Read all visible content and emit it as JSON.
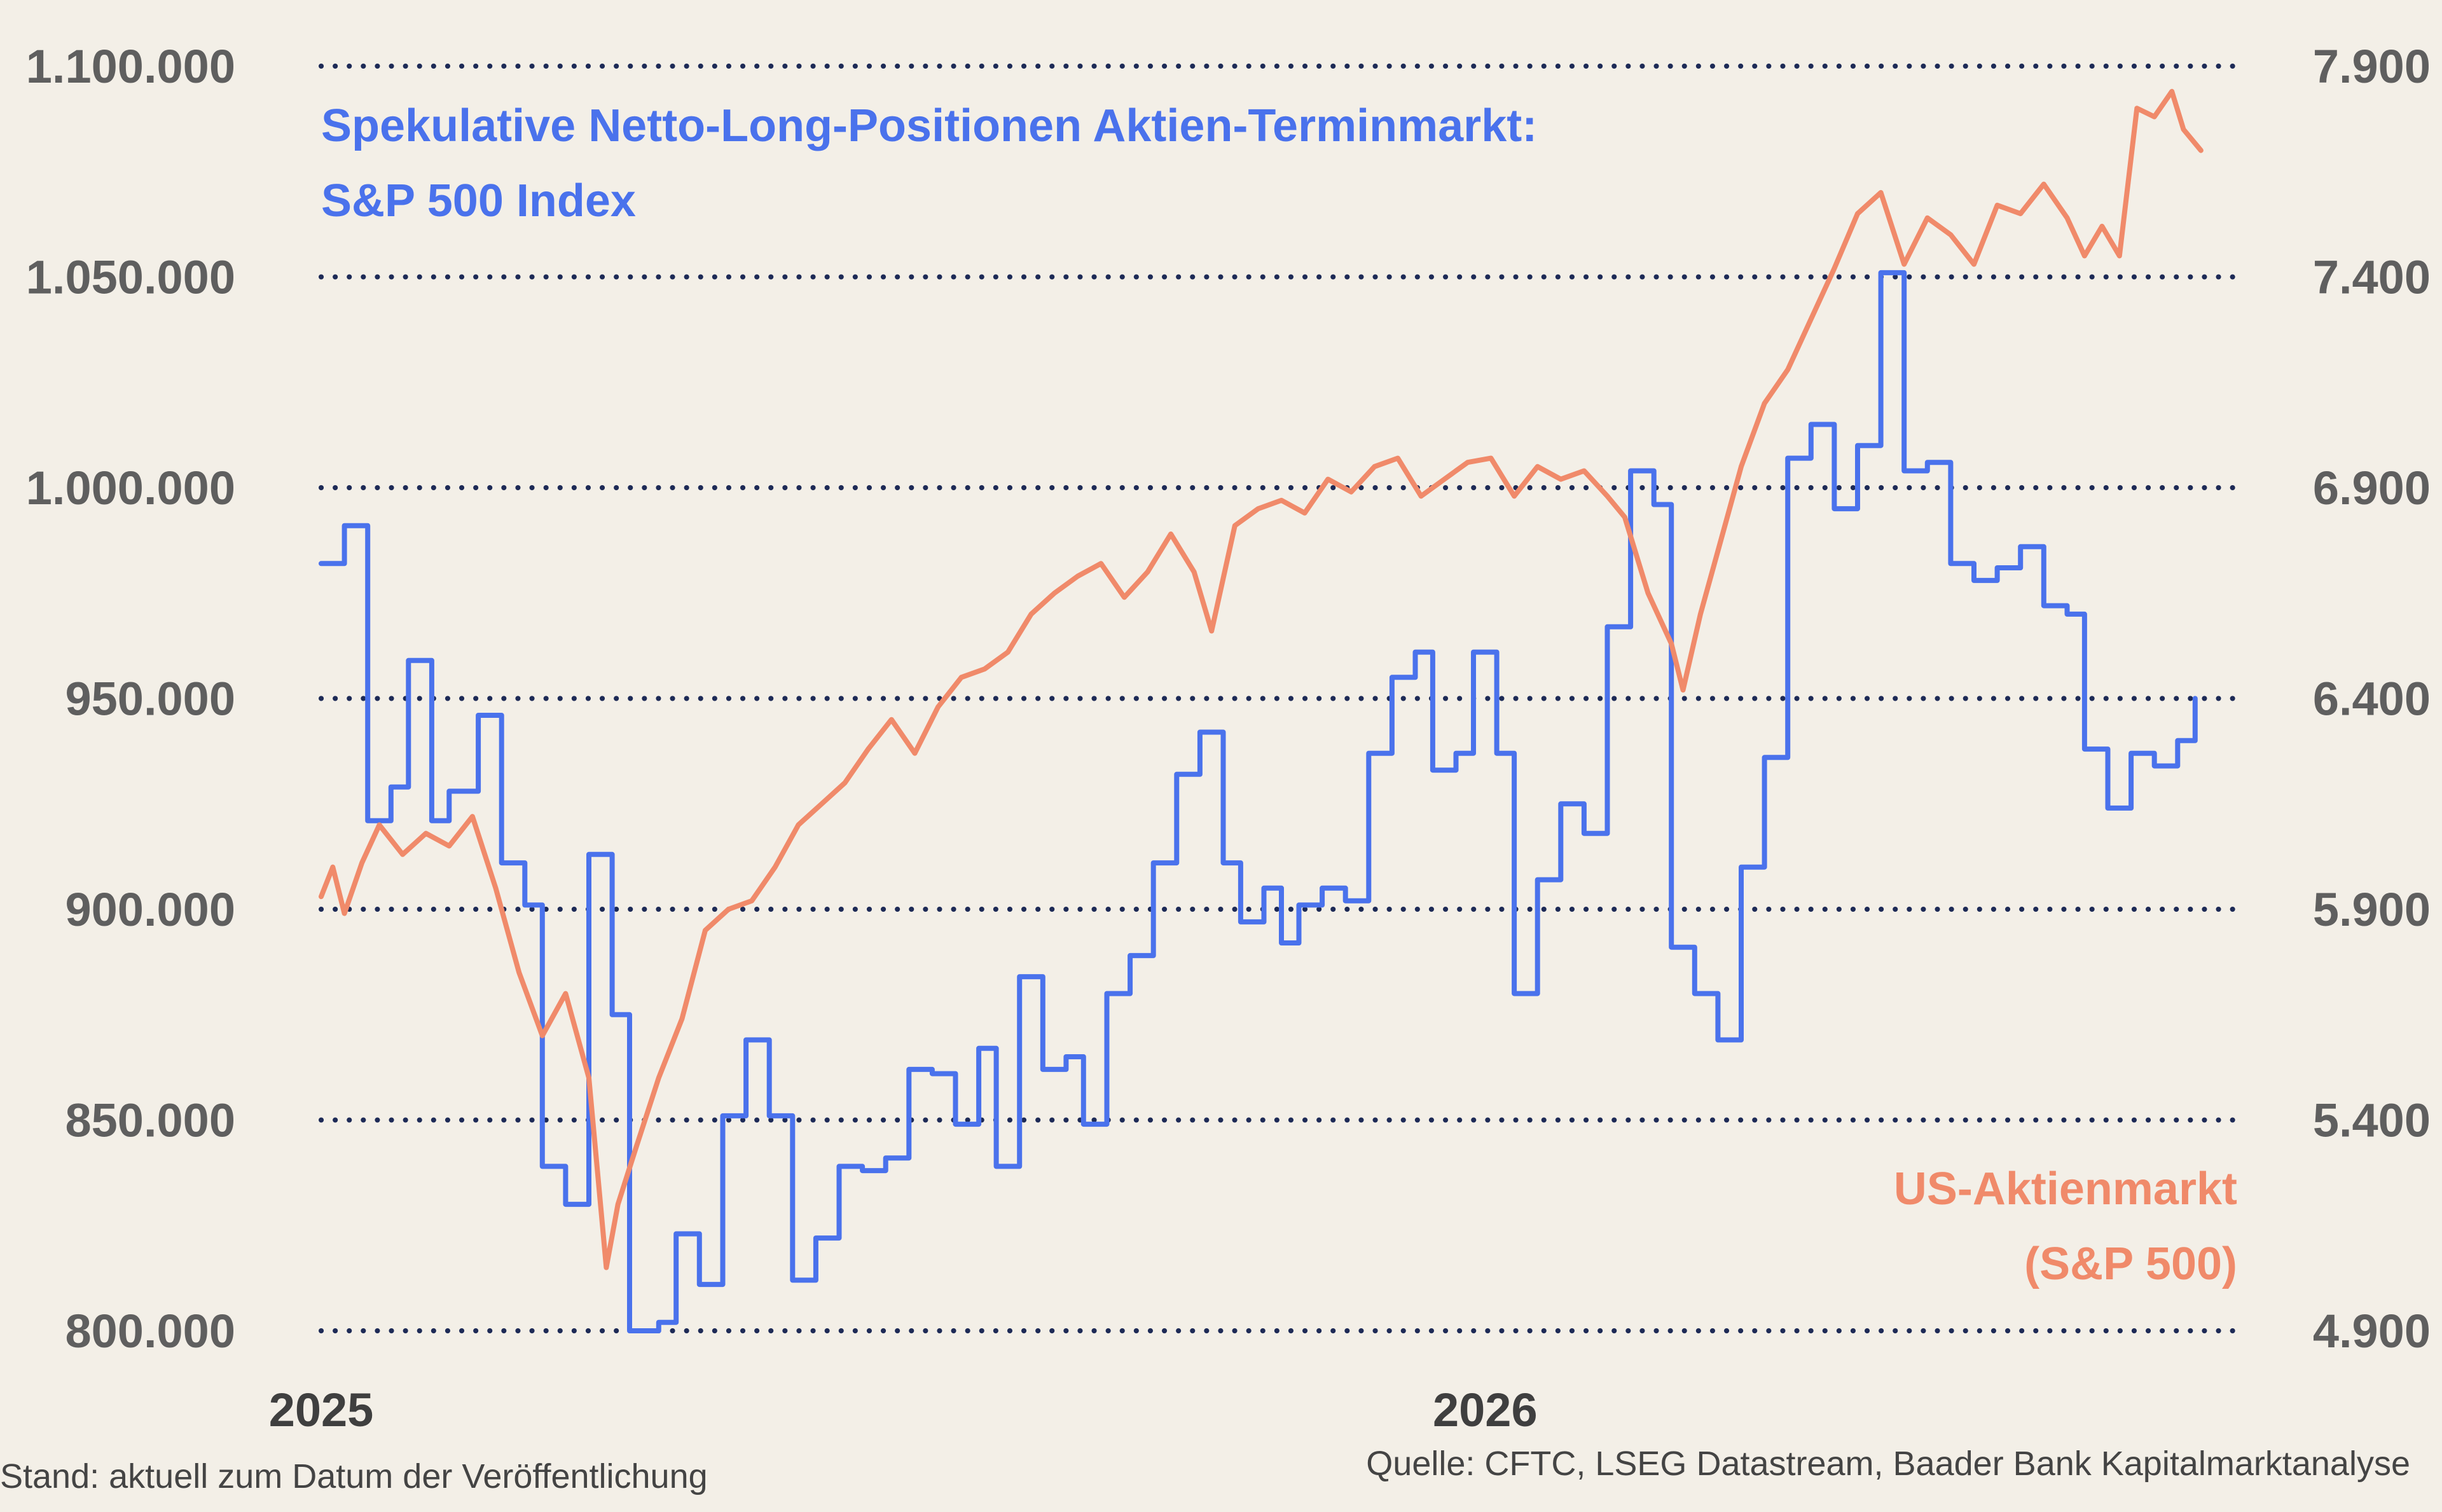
{
  "chart_data": {
    "type": "line",
    "title": "Spekulative Netto-Long-Positionen Aktien-Terminmarkt:",
    "title_line2": "S&P 500 Index",
    "left_axis": {
      "ylim": [
        800000,
        1100000
      ],
      "ticks": [
        "800.000",
        "850.000",
        "900.000",
        "950.000",
        "1.000.000",
        "1.050.000",
        "1.100.000"
      ],
      "tick_values": [
        800000,
        850000,
        900000,
        950000,
        1000000,
        1050000,
        1100000
      ]
    },
    "right_axis": {
      "ylim": [
        4900,
        7900
      ],
      "ticks": [
        "4.900",
        "5.400",
        "5.900",
        "6.400",
        "6.900",
        "7.400",
        "7.900"
      ],
      "tick_values": [
        4900,
        5400,
        5900,
        6400,
        6900,
        7400,
        7900
      ]
    },
    "x_axis": {
      "xlim": [
        2025.0,
        2026.65
      ],
      "ticks": [
        "2025",
        "2026"
      ],
      "tick_values": [
        2025.0,
        2026.0
      ]
    },
    "grid": true,
    "series": [
      {
        "name": "Spekulative Netto-Long-Positionen Aktien-Terminmarkt: S&P 500 Index",
        "axis": "left",
        "color": "#4a72ec",
        "step": true,
        "points": [
          [
            2025.0,
            982000
          ],
          [
            2025.02,
            991000
          ],
          [
            2025.04,
            921000
          ],
          [
            2025.06,
            929000
          ],
          [
            2025.075,
            959000
          ],
          [
            2025.095,
            921000
          ],
          [
            2025.11,
            928000
          ],
          [
            2025.135,
            946000
          ],
          [
            2025.155,
            911000
          ],
          [
            2025.175,
            901000
          ],
          [
            2025.19,
            839000
          ],
          [
            2025.21,
            830000
          ],
          [
            2025.23,
            913000
          ],
          [
            2025.25,
            875000
          ],
          [
            2025.265,
            800000
          ],
          [
            2025.29,
            802000
          ],
          [
            2025.305,
            823000
          ],
          [
            2025.325,
            811000
          ],
          [
            2025.345,
            851000
          ],
          [
            2025.365,
            869000
          ],
          [
            2025.385,
            851000
          ],
          [
            2025.405,
            812000
          ],
          [
            2025.425,
            822000
          ],
          [
            2025.445,
            839000
          ],
          [
            2025.465,
            838000
          ],
          [
            2025.485,
            841000
          ],
          [
            2025.505,
            862000
          ],
          [
            2025.525,
            861000
          ],
          [
            2025.545,
            849000
          ],
          [
            2025.565,
            867000
          ],
          [
            2025.58,
            839000
          ],
          [
            2025.6,
            884000
          ],
          [
            2025.62,
            862000
          ],
          [
            2025.64,
            865000
          ],
          [
            2025.655,
            849000
          ],
          [
            2025.675,
            880000
          ],
          [
            2025.695,
            889000
          ],
          [
            2025.715,
            911000
          ],
          [
            2025.735,
            932000
          ],
          [
            2025.755,
            942000
          ],
          [
            2025.775,
            911000
          ],
          [
            2025.79,
            897000
          ],
          [
            2025.81,
            905000
          ],
          [
            2025.825,
            892000
          ],
          [
            2025.84,
            901000
          ],
          [
            2025.86,
            905000
          ],
          [
            2025.88,
            902000
          ],
          [
            2025.9,
            937000
          ],
          [
            2025.92,
            955000
          ],
          [
            2025.94,
            961000
          ],
          [
            2025.955,
            933000
          ],
          [
            2025.975,
            937000
          ],
          [
            2025.99,
            961000
          ],
          [
            2026.01,
            937000
          ],
          [
            2026.025,
            880000
          ],
          [
            2026.045,
            907000
          ],
          [
            2026.065,
            925000
          ],
          [
            2026.085,
            918000
          ],
          [
            2026.105,
            967000
          ],
          [
            2026.125,
            1004000
          ],
          [
            2026.145,
            996000
          ],
          [
            2026.16,
            891000
          ],
          [
            2026.18,
            880000
          ],
          [
            2026.2,
            869000
          ],
          [
            2026.22,
            910000
          ],
          [
            2026.24,
            936000
          ],
          [
            2026.26,
            1007000
          ],
          [
            2026.28,
            1015000
          ],
          [
            2026.3,
            995000
          ],
          [
            2026.32,
            1010000
          ],
          [
            2026.34,
            1051000
          ],
          [
            2026.36,
            1004000
          ],
          [
            2026.38,
            1006000
          ],
          [
            2026.4,
            982000
          ],
          [
            2026.42,
            978000
          ],
          [
            2026.44,
            981000
          ],
          [
            2026.46,
            986000
          ],
          [
            2026.48,
            972000
          ],
          [
            2026.5,
            970000
          ],
          [
            2026.515,
            938000
          ],
          [
            2026.535,
            924000
          ],
          [
            2026.555,
            937000
          ],
          [
            2026.575,
            934000
          ],
          [
            2026.595,
            940000
          ],
          [
            2026.61,
            950000
          ]
        ]
      },
      {
        "name": "US-Aktienmarkt (S&P 500)",
        "name_line1": "US-Aktienmarkt",
        "name_line2": "(S&P 500)",
        "axis": "right",
        "color": "#f08a6a",
        "step": false,
        "points": [
          [
            2025.0,
            5930
          ],
          [
            2025.01,
            6000
          ],
          [
            2025.02,
            5890
          ],
          [
            2025.035,
            6010
          ],
          [
            2025.05,
            6100
          ],
          [
            2025.07,
            6030
          ],
          [
            2025.09,
            6080
          ],
          [
            2025.11,
            6050
          ],
          [
            2025.13,
            6120
          ],
          [
            2025.15,
            5950
          ],
          [
            2025.17,
            5750
          ],
          [
            2025.19,
            5600
          ],
          [
            2025.21,
            5700
          ],
          [
            2025.23,
            5500
          ],
          [
            2025.245,
            5050
          ],
          [
            2025.255,
            5200
          ],
          [
            2025.27,
            5330
          ],
          [
            2025.29,
            5500
          ],
          [
            2025.31,
            5640
          ],
          [
            2025.33,
            5850
          ],
          [
            2025.35,
            5900
          ],
          [
            2025.37,
            5920
          ],
          [
            2025.39,
            6000
          ],
          [
            2025.41,
            6100
          ],
          [
            2025.43,
            6150
          ],
          [
            2025.45,
            6200
          ],
          [
            2025.47,
            6280
          ],
          [
            2025.49,
            6350
          ],
          [
            2025.51,
            6270
          ],
          [
            2025.53,
            6380
          ],
          [
            2025.55,
            6450
          ],
          [
            2025.57,
            6470
          ],
          [
            2025.59,
            6510
          ],
          [
            2025.61,
            6600
          ],
          [
            2025.63,
            6650
          ],
          [
            2025.65,
            6690
          ],
          [
            2025.67,
            6720
          ],
          [
            2025.69,
            6640
          ],
          [
            2025.71,
            6700
          ],
          [
            2025.73,
            6790
          ],
          [
            2025.75,
            6700
          ],
          [
            2025.765,
            6560
          ],
          [
            2025.785,
            6810
          ],
          [
            2025.805,
            6850
          ],
          [
            2025.825,
            6870
          ],
          [
            2025.845,
            6840
          ],
          [
            2025.865,
            6920
          ],
          [
            2025.885,
            6890
          ],
          [
            2025.905,
            6950
          ],
          [
            2025.925,
            6970
          ],
          [
            2025.945,
            6880
          ],
          [
            2025.965,
            6920
          ],
          [
            2025.985,
            6960
          ],
          [
            2026.005,
            6970
          ],
          [
            2026.025,
            6880
          ],
          [
            2026.045,
            6950
          ],
          [
            2026.065,
            6920
          ],
          [
            2026.085,
            6940
          ],
          [
            2026.105,
            6880
          ],
          [
            2026.12,
            6830
          ],
          [
            2026.14,
            6650
          ],
          [
            2026.16,
            6530
          ],
          [
            2026.17,
            6420
          ],
          [
            2026.185,
            6600
          ],
          [
            2026.2,
            6750
          ],
          [
            2026.22,
            6950
          ],
          [
            2026.24,
            7100
          ],
          [
            2026.26,
            7180
          ],
          [
            2026.28,
            7300
          ],
          [
            2026.3,
            7420
          ],
          [
            2026.32,
            7550
          ],
          [
            2026.34,
            7600
          ],
          [
            2026.36,
            7430
          ],
          [
            2026.38,
            7540
          ],
          [
            2026.4,
            7500
          ],
          [
            2026.42,
            7430
          ],
          [
            2026.44,
            7570
          ],
          [
            2026.46,
            7550
          ],
          [
            2026.48,
            7620
          ],
          [
            2026.5,
            7540
          ],
          [
            2026.515,
            7450
          ],
          [
            2026.53,
            7520
          ],
          [
            2026.545,
            7450
          ],
          [
            2026.56,
            7800
          ],
          [
            2026.575,
            7780
          ],
          [
            2026.59,
            7840
          ],
          [
            2026.6,
            7750
          ],
          [
            2026.615,
            7700
          ]
        ]
      }
    ],
    "footer_left": "Stand: aktuell zum Datum der Veröffentlichung",
    "footer_right": "Quelle: CFTC, LSEG Datastream, Baader Bank Kapitalmarktanalyse"
  }
}
